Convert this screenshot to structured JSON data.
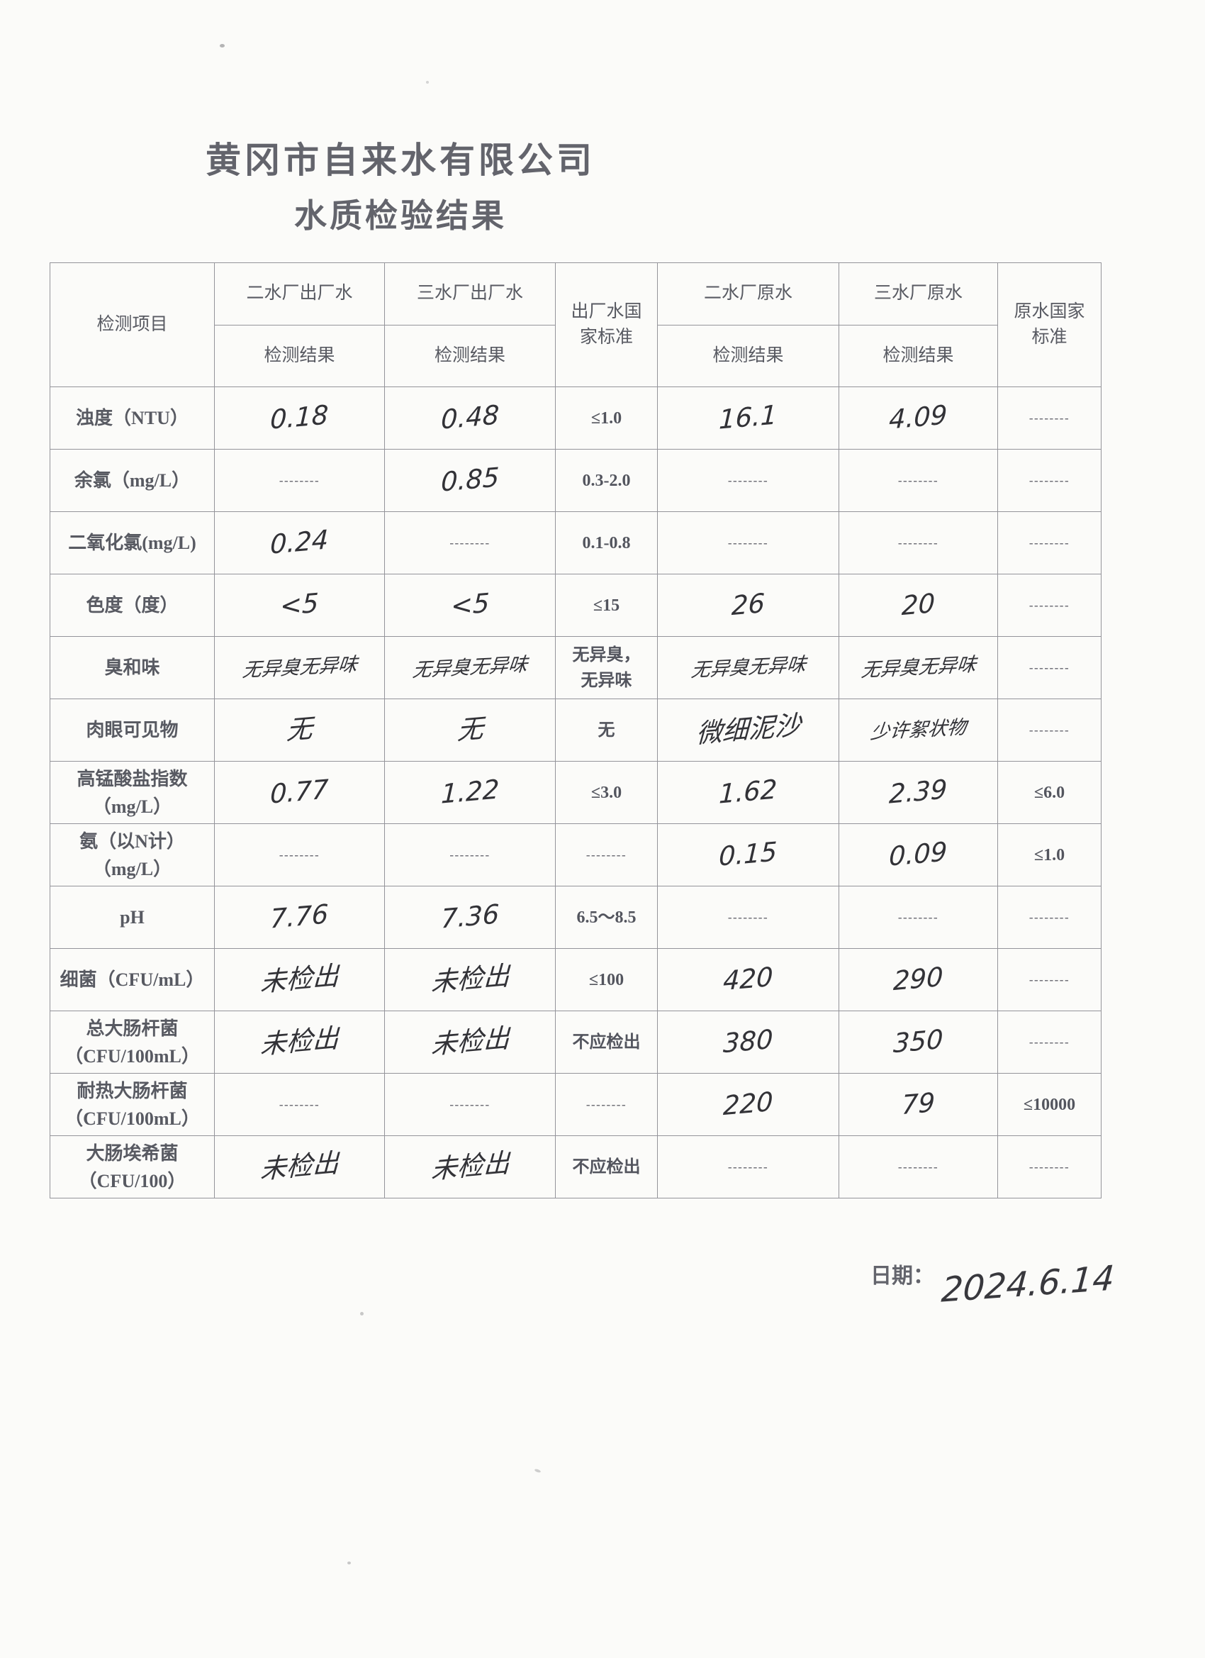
{
  "page": {
    "title_line1": "黄冈市自来水有限公司",
    "title_line2": "水质检验结果",
    "date_label": "日期：",
    "date_value": "2024.6.14"
  },
  "table": {
    "header": {
      "item": "检测项目",
      "plant2_out": "二水厂出厂水",
      "plant3_out": "三水厂出厂水",
      "out_standard": "出厂水国\n家标准",
      "plant2_raw": "二水厂原水",
      "plant3_raw": "三水厂原水",
      "raw_standard": "原水国家\n标准",
      "result_label": "检测结果"
    },
    "rows": [
      {
        "item": "浊度（NTU）",
        "cells": [
          {
            "text": "0.18",
            "kind": "hw"
          },
          {
            "text": "0.48",
            "kind": "hw"
          },
          {
            "text": "≤1.0",
            "kind": "std"
          },
          {
            "text": "16.1",
            "kind": "hw"
          },
          {
            "text": "4.09",
            "kind": "hw"
          },
          {
            "text": "--------",
            "kind": "dash"
          }
        ]
      },
      {
        "item": "余氯（mg/L）",
        "cells": [
          {
            "text": "--------",
            "kind": "dash"
          },
          {
            "text": "0.85",
            "kind": "hw"
          },
          {
            "text": "0.3-2.0",
            "kind": "std"
          },
          {
            "text": "--------",
            "kind": "dash"
          },
          {
            "text": "--------",
            "kind": "dash"
          },
          {
            "text": "--------",
            "kind": "dash"
          }
        ]
      },
      {
        "item": "二氧化氯(mg/L)",
        "cells": [
          {
            "text": "0.24",
            "kind": "hw"
          },
          {
            "text": "--------",
            "kind": "dash"
          },
          {
            "text": "0.1-0.8",
            "kind": "std"
          },
          {
            "text": "--------",
            "kind": "dash"
          },
          {
            "text": "--------",
            "kind": "dash"
          },
          {
            "text": "--------",
            "kind": "dash"
          }
        ]
      },
      {
        "item": "色度（度）",
        "cells": [
          {
            "text": "<5",
            "kind": "hw"
          },
          {
            "text": "<5",
            "kind": "hw"
          },
          {
            "text": "≤15",
            "kind": "std"
          },
          {
            "text": "26",
            "kind": "hw"
          },
          {
            "text": "20",
            "kind": "hw"
          },
          {
            "text": "--------",
            "kind": "dash"
          }
        ]
      },
      {
        "item": "臭和味",
        "cells": [
          {
            "text": "无异臭无异味",
            "kind": "hw"
          },
          {
            "text": "无异臭无异味",
            "kind": "hw"
          },
          {
            "text": "无异臭，\n无异味",
            "kind": "std"
          },
          {
            "text": "无异臭无异味",
            "kind": "hw"
          },
          {
            "text": "无异臭无异味",
            "kind": "hw"
          },
          {
            "text": "--------",
            "kind": "dash"
          }
        ]
      },
      {
        "item": "肉眼可见物",
        "cells": [
          {
            "text": "无",
            "kind": "hw"
          },
          {
            "text": "无",
            "kind": "hw"
          },
          {
            "text": "无",
            "kind": "std"
          },
          {
            "text": "微细泥沙",
            "kind": "hw"
          },
          {
            "text": "少许絮状物",
            "kind": "hw"
          },
          {
            "text": "--------",
            "kind": "dash"
          }
        ]
      },
      {
        "item": "高锰酸盐指数\n（mg/L）",
        "cells": [
          {
            "text": "0.77",
            "kind": "hw"
          },
          {
            "text": "1.22",
            "kind": "hw"
          },
          {
            "text": "≤3.0",
            "kind": "std"
          },
          {
            "text": "1.62",
            "kind": "hw"
          },
          {
            "text": "2.39",
            "kind": "hw"
          },
          {
            "text": "≤6.0",
            "kind": "std"
          }
        ]
      },
      {
        "item": "氨（以N计）\n（mg/L）",
        "cells": [
          {
            "text": "--------",
            "kind": "dash"
          },
          {
            "text": "--------",
            "kind": "dash"
          },
          {
            "text": "--------",
            "kind": "dash"
          },
          {
            "text": "0.15",
            "kind": "hw"
          },
          {
            "text": "0.09",
            "kind": "hw"
          },
          {
            "text": "≤1.0",
            "kind": "std"
          }
        ]
      },
      {
        "item": "pH",
        "cells": [
          {
            "text": "7.76",
            "kind": "hw"
          },
          {
            "text": "7.36",
            "kind": "hw"
          },
          {
            "text": "6.5～8.5",
            "kind": "std"
          },
          {
            "text": "--------",
            "kind": "dash"
          },
          {
            "text": "--------",
            "kind": "dash"
          },
          {
            "text": "--------",
            "kind": "dash"
          }
        ]
      },
      {
        "item": "细菌（CFU/mL）",
        "cells": [
          {
            "text": "未检出",
            "kind": "hw"
          },
          {
            "text": "未检出",
            "kind": "hw"
          },
          {
            "text": "≤100",
            "kind": "std"
          },
          {
            "text": "420",
            "kind": "hw"
          },
          {
            "text": "290",
            "kind": "hw"
          },
          {
            "text": "--------",
            "kind": "dash"
          }
        ]
      },
      {
        "item": "总大肠杆菌\n（CFU/100mL）",
        "cells": [
          {
            "text": "未检出",
            "kind": "hw"
          },
          {
            "text": "未检出",
            "kind": "hw"
          },
          {
            "text": "不应检出",
            "kind": "std"
          },
          {
            "text": "380",
            "kind": "hw"
          },
          {
            "text": "350",
            "kind": "hw"
          },
          {
            "text": "--------",
            "kind": "dash"
          }
        ]
      },
      {
        "item": "耐热大肠杆菌\n（CFU/100mL）",
        "cells": [
          {
            "text": "--------",
            "kind": "dash"
          },
          {
            "text": "--------",
            "kind": "dash"
          },
          {
            "text": "--------",
            "kind": "dash"
          },
          {
            "text": "220",
            "kind": "hw"
          },
          {
            "text": "79",
            "kind": "hw"
          },
          {
            "text": "≤10000",
            "kind": "std"
          }
        ]
      },
      {
        "item": "大肠埃希菌\n（CFU/100）",
        "cells": [
          {
            "text": "未检出",
            "kind": "hw"
          },
          {
            "text": "未检出",
            "kind": "hw"
          },
          {
            "text": "不应检出",
            "kind": "std"
          },
          {
            "text": "--------",
            "kind": "dash"
          },
          {
            "text": "--------",
            "kind": "dash"
          },
          {
            "text": "--------",
            "kind": "dash"
          }
        ]
      }
    ]
  }
}
